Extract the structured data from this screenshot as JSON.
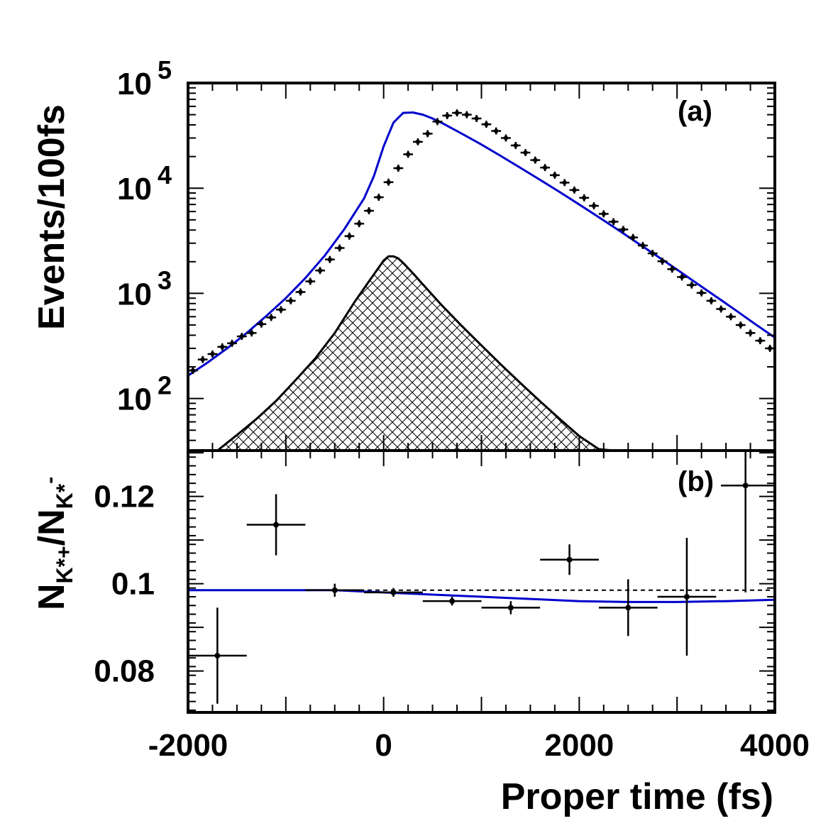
{
  "chart_data": [
    {
      "panel_label": "(a)",
      "type": "scatter",
      "ylabel": "Events/100fs",
      "yscale": "log",
      "xlim": [
        -2000,
        4000
      ],
      "ylim": [
        32,
        100000
      ],
      "x_ticks": [
        -2000,
        0,
        2000,
        4000
      ],
      "y_ticks": [
        {
          "value": 100,
          "base": "10",
          "exp": "2"
        },
        {
          "value": 1000,
          "base": "10",
          "exp": "3"
        },
        {
          "value": 10000,
          "base": "10",
          "exp": "4"
        },
        {
          "value": 100000,
          "base": "10",
          "exp": "5"
        }
      ],
      "data": {
        "x": [
          -1950,
          -1850,
          -1750,
          -1650,
          -1550,
          -1450,
          -1350,
          -1250,
          -1150,
          -1050,
          -950,
          -850,
          -750,
          -650,
          -550,
          -450,
          -350,
          -250,
          -150,
          -50,
          50,
          150,
          250,
          350,
          450,
          550,
          650,
          750,
          850,
          950,
          1050,
          1150,
          1250,
          1350,
          1450,
          1550,
          1650,
          1750,
          1850,
          1950,
          2050,
          2150,
          2250,
          2350,
          2450,
          2550,
          2650,
          2750,
          2850,
          2950,
          3050,
          3150,
          3250,
          3350,
          3450,
          3550,
          3650,
          3750,
          3850,
          3950
        ],
        "y": [
          185,
          235,
          265,
          310,
          335,
          390,
          420,
          510,
          590,
          700,
          850,
          1030,
          1300,
          1650,
          2100,
          2700,
          3500,
          4600,
          6100,
          8200,
          11400,
          15500,
          21000,
          27600,
          33000,
          43000,
          49000,
          52000,
          50000,
          46000,
          40500,
          35000,
          30000,
          25500,
          21800,
          18500,
          15700,
          13300,
          11300,
          9600,
          8100,
          6800,
          5700,
          4800,
          4050,
          3400,
          2850,
          2400,
          2020,
          1700,
          1430,
          1200,
          1010,
          850,
          710,
          600,
          500,
          420,
          355,
          300
        ],
        "note_ignored": ""
      },
      "fit_curve": {
        "color": "#0000cc",
        "x": [
          -2000,
          -1800,
          -1600,
          -1400,
          -1200,
          -1000,
          -800,
          -600,
          -400,
          -200,
          -100,
          0,
          100,
          200,
          300,
          400,
          500,
          600,
          800,
          1000,
          1200,
          1400,
          1600,
          1800,
          2000,
          2200,
          2400,
          2600,
          2800,
          3000,
          3200,
          3400,
          3600,
          3800,
          4000
        ],
        "y": [
          165,
          220,
          300,
          420,
          610,
          900,
          1400,
          2300,
          4100,
          8000,
          13000,
          25000,
          42000,
          52000,
          52500,
          50000,
          46000,
          41500,
          33000,
          26000,
          20200,
          15600,
          12000,
          9200,
          7000,
          5300,
          4000,
          3000,
          2250,
          1680,
          1250,
          930,
          690,
          510,
          380
        ]
      },
      "background_curve": {
        "fill": "crosshatch",
        "x": [
          -1700,
          -1500,
          -1300,
          -1100,
          -900,
          -700,
          -500,
          -300,
          -150,
          0,
          50,
          100,
          150,
          200,
          300,
          400,
          600,
          800,
          1000,
          1200,
          1400,
          1600,
          1800,
          2000,
          2200,
          2350
        ],
        "y": [
          32,
          45,
          64,
          95,
          150,
          240,
          420,
          820,
          1300,
          2050,
          2250,
          2250,
          2150,
          1950,
          1550,
          1220,
          760,
          490,
          320,
          210,
          140,
          94,
          64,
          44,
          33,
          32
        ]
      }
    },
    {
      "panel_label": "(b)",
      "type": "scatter",
      "xlabel": "Proper time (fs)",
      "ylabel_parts": {
        "n1": "N",
        "sub1": "K*",
        "sup1": "+",
        "slash": "/",
        "n2": "N",
        "sub2": "K*",
        "sup2": "-"
      },
      "xlim": [
        -2000,
        4000
      ],
      "ylim": [
        0.0705,
        0.1305
      ],
      "x_ticks": [
        -2000,
        0,
        2000,
        4000
      ],
      "y_ticks": [
        0.08,
        0.1,
        0.12
      ],
      "y_tick_labels": [
        "0.08",
        "0.1",
        "0.12"
      ],
      "points": [
        {
          "x": -1700,
          "y": 0.0835,
          "xerr": 300,
          "yerr": 0.011
        },
        {
          "x": -1100,
          "y": 0.1135,
          "xerr": 300,
          "yerr": 0.007
        },
        {
          "x": -500,
          "y": 0.0985,
          "xerr": 300,
          "yerr": 0.0015
        },
        {
          "x": 100,
          "y": 0.098,
          "xerr": 300,
          "yerr": 0.001
        },
        {
          "x": 700,
          "y": 0.096,
          "xerr": 300,
          "yerr": 0.001
        },
        {
          "x": 1300,
          "y": 0.0945,
          "xerr": 300,
          "yerr": 0.0015
        },
        {
          "x": 1900,
          "y": 0.1055,
          "xerr": 300,
          "yerr": 0.0035
        },
        {
          "x": 2500,
          "y": 0.0945,
          "xerr": 300,
          "yerr": 0.0065
        },
        {
          "x": 3100,
          "y": 0.097,
          "xerr": 300,
          "yerr": 0.0135
        },
        {
          "x": 3700,
          "y": 0.1225,
          "xerr": 300,
          "yerr": 0.0245
        }
      ],
      "fit_curve": {
        "color": "#0000cc",
        "x": [
          -2000,
          -1000,
          -500,
          0,
          500,
          1000,
          1500,
          2000,
          2500,
          3000,
          3500,
          4000
        ],
        "y": [
          0.0985,
          0.0985,
          0.0985,
          0.098,
          0.0975,
          0.097,
          0.0965,
          0.096,
          0.0958,
          0.0958,
          0.096,
          0.0963
        ]
      },
      "reference_line": {
        "y": 0.0985,
        "style": "dashed"
      }
    }
  ]
}
